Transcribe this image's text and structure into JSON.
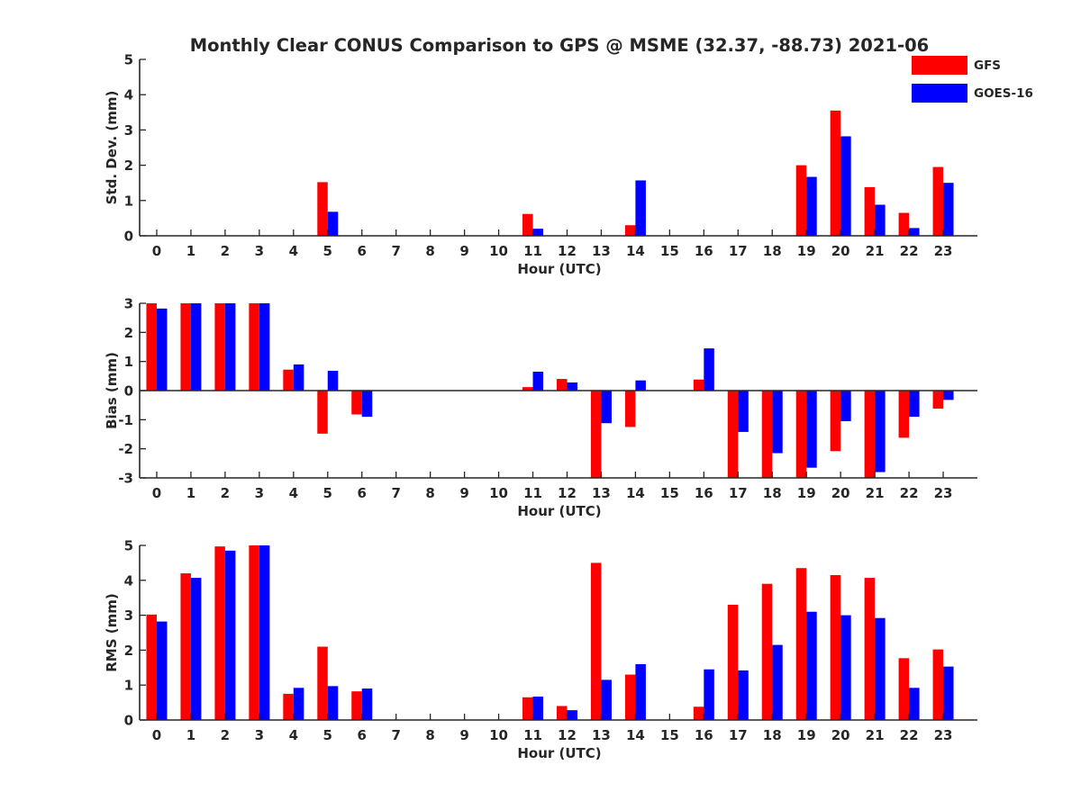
{
  "title": "Monthly Clear CONUS Comparison to GPS @ MSME (32.37, -88.73) 2021-06",
  "legend": {
    "placement": "top-right",
    "entries": [
      {
        "label": "GFS",
        "color": "#ff0000"
      },
      {
        "label": "GOES-16",
        "color": "#0000ff"
      }
    ]
  },
  "colors": {
    "GFS": "#ff0000",
    "GOES-16": "#0000ff",
    "axis": "#262626"
  },
  "chart_data": [
    {
      "type": "bar",
      "xlabel": "Hour (UTC)",
      "ylabel": "Std. Dev. (mm)",
      "ylim": [
        0,
        5
      ],
      "yticks": [
        "0",
        "1",
        "2",
        "3",
        "4",
        "5"
      ],
      "categories": [
        "0",
        "1",
        "2",
        "3",
        "4",
        "5",
        "6",
        "7",
        "8",
        "9",
        "10",
        "11",
        "12",
        "13",
        "14",
        "15",
        "16",
        "17",
        "18",
        "19",
        "20",
        "21",
        "22",
        "23"
      ],
      "series": [
        {
          "name": "GFS",
          "values": [
            0,
            0,
            0,
            0,
            0,
            1.52,
            0,
            0,
            0,
            0,
            0,
            0.62,
            0,
            0,
            0.3,
            0,
            0,
            0,
            0,
            2.0,
            3.55,
            1.38,
            0.65,
            1.95
          ]
        },
        {
          "name": "GOES-16",
          "values": [
            0,
            0,
            0,
            0,
            0,
            0.68,
            0,
            0,
            0,
            0,
            0,
            0.2,
            0,
            0,
            1.57,
            0,
            0,
            0,
            0,
            1.67,
            2.82,
            0.88,
            0.22,
            1.5
          ]
        }
      ]
    },
    {
      "type": "bar",
      "xlabel": "Hour (UTC)",
      "ylabel": "Bias (mm)",
      "ylim": [
        -3,
        3
      ],
      "yticks": [
        "-3",
        "-2",
        "-1",
        "0",
        "1",
        "2",
        "3"
      ],
      "categories": [
        "0",
        "1",
        "2",
        "3",
        "4",
        "5",
        "6",
        "7",
        "8",
        "9",
        "10",
        "11",
        "12",
        "13",
        "14",
        "15",
        "16",
        "17",
        "18",
        "19",
        "20",
        "21",
        "22",
        "23"
      ],
      "series": [
        {
          "name": "GFS",
          "values": [
            3.0,
            3.0,
            3.0,
            3.0,
            0.72,
            -1.48,
            -0.82,
            0,
            0,
            0,
            0,
            0.12,
            0.4,
            -3.0,
            -1.25,
            0,
            0.38,
            -3.0,
            -3.0,
            -3.0,
            -2.08,
            -3.0,
            -1.62,
            -0.62
          ]
        },
        {
          "name": "GOES-16",
          "values": [
            2.82,
            3.0,
            3.0,
            3.0,
            0.9,
            0.68,
            -0.9,
            0,
            0,
            0,
            0,
            0.65,
            0.28,
            -1.12,
            0.35,
            0,
            1.45,
            -1.42,
            -2.15,
            -2.65,
            -1.05,
            -2.8,
            -0.9,
            -0.32
          ]
        }
      ]
    },
    {
      "type": "bar",
      "xlabel": "Hour (UTC)",
      "ylabel": "RMS (mm)",
      "ylim": [
        0,
        5
      ],
      "yticks": [
        "0",
        "1",
        "2",
        "3",
        "4",
        "5"
      ],
      "categories": [
        "0",
        "1",
        "2",
        "3",
        "4",
        "5",
        "6",
        "7",
        "8",
        "9",
        "10",
        "11",
        "12",
        "13",
        "14",
        "15",
        "16",
        "17",
        "18",
        "19",
        "20",
        "21",
        "22",
        "23"
      ],
      "series": [
        {
          "name": "GFS",
          "values": [
            3.02,
            4.2,
            4.97,
            5.0,
            0.75,
            2.1,
            0.82,
            0,
            0,
            0,
            0,
            0.65,
            0.4,
            4.5,
            1.3,
            0,
            0.38,
            3.3,
            3.9,
            4.35,
            4.15,
            4.07,
            1.77,
            2.02
          ]
        },
        {
          "name": "GOES-16",
          "values": [
            2.82,
            4.07,
            4.85,
            5.0,
            0.92,
            0.97,
            0.9,
            0,
            0,
            0,
            0,
            0.67,
            0.28,
            1.15,
            1.6,
            0,
            1.45,
            1.42,
            2.15,
            3.1,
            3.0,
            2.92,
            0.92,
            1.53
          ]
        }
      ]
    }
  ]
}
